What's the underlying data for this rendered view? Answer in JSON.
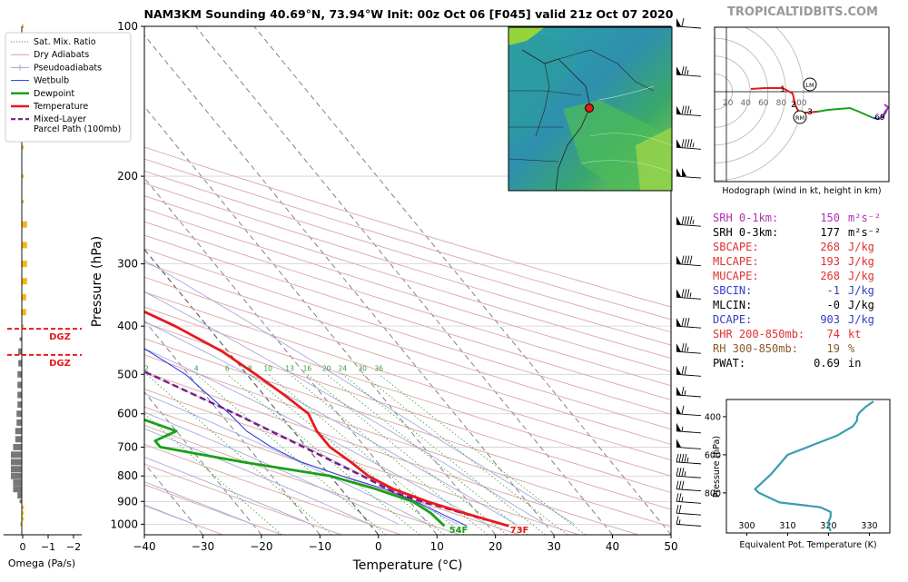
{
  "header": {
    "title": "NAM3KM Sounding 40.69°N, 73.94°W Init: 00z Oct 06 [F045] valid 21z Oct 07 2020",
    "watermark": "TROPICALTIDBITS.COM"
  },
  "legend": {
    "items": [
      {
        "label": "Sat. Mix. Ratio",
        "color": "#2e8b57",
        "style": "dotted"
      },
      {
        "label": "Dry Adiabats",
        "color": "#d9a0a0",
        "style": "solid"
      },
      {
        "label": "Pseudoadiabats",
        "color": "#a0a0d8",
        "style": "tick"
      },
      {
        "label": "Wetbulb",
        "color": "#2233dd",
        "style": "solid"
      },
      {
        "label": "Dewpoint",
        "color": "#19a119",
        "style": "thick"
      },
      {
        "label": "Temperature",
        "color": "#e8191b",
        "style": "thick"
      },
      {
        "label": "Mixed-Layer\nParcel Path (100mb)",
        "color": "#7b1a80",
        "style": "dashed"
      }
    ]
  },
  "omega": {
    "xlabel": "Omega (Pa/s)",
    "ticks": [
      "0",
      "−1",
      "−2"
    ],
    "dgz_label": "DGZ"
  },
  "hodograph": {
    "caption": "Hodograph (wind in kt, height in km)",
    "rings": [
      "20",
      "40",
      "60",
      "80",
      "100"
    ],
    "labels": {
      "lm": "LM",
      "rm": "RM",
      "h1": "1",
      "h2": "2",
      "h3": "3",
      "h69": "69"
    }
  },
  "indices": [
    {
      "label": "SRH 0-1km:",
      "value": "150",
      "unit": "m²s⁻²",
      "color": "#b030b0"
    },
    {
      "label": "SRH 0-3km:",
      "value": "177",
      "unit": "m²s⁻²",
      "color": "#000000"
    },
    {
      "label": "SBCAPE:",
      "value": "268",
      "unit": "J/kg",
      "color": "#e03030"
    },
    {
      "label": "MLCAPE:",
      "value": "193",
      "unit": "J/kg",
      "color": "#e03030"
    },
    {
      "label": "MUCAPE:",
      "value": "268",
      "unit": "J/kg",
      "color": "#e03030"
    },
    {
      "label": "SBCIN:",
      "value": "-1",
      "unit": "J/kg",
      "color": "#3040c0"
    },
    {
      "label": "MLCIN:",
      "value": "-0",
      "unit": "J/kg",
      "color": "#000000"
    },
    {
      "label": "DCAPE:",
      "value": "903",
      "unit": "J/kg",
      "color": "#3040c0"
    },
    {
      "label": "SHR 200-850mb:",
      "value": "74",
      "unit": "kt",
      "color": "#e03030"
    },
    {
      "label": "RH 300-850mb:",
      "value": "19",
      "unit": "%",
      "color": "#8b5a2b"
    },
    {
      "label": "PWAT:",
      "value": "0.69",
      "unit": "in",
      "color": "#000000"
    }
  ],
  "surface_labels": {
    "dewpoint": "54F",
    "temperature": "73F"
  },
  "colors": {
    "temperature": "#e8191b",
    "dewpoint": "#19a119",
    "wetbulb": "#2233dd",
    "parcel": "#7b1a80",
    "theta_e": "#3a9cb0"
  },
  "chart_data": [
    {
      "type": "line",
      "title": "NAM3KM Sounding 40.69°N, 73.94°W Init: 00z Oct 06 [F045] valid 21z Oct 07 2020",
      "xlabel": "Temperature (°C)",
      "ylabel": "Pressure (hPa)",
      "xlim": [
        -40,
        50
      ],
      "ylim": [
        1050,
        100
      ],
      "y_scale": "log",
      "skew": true,
      "x_ticks": [
        -40,
        -30,
        -20,
        -10,
        0,
        10,
        20,
        30,
        40,
        50
      ],
      "y_ticks": [
        100,
        200,
        300,
        400,
        500,
        600,
        700,
        800,
        900,
        1000
      ],
      "mixing_ratio_labels": [
        "1",
        "2",
        "4",
        "6",
        "8",
        "10",
        "13",
        "16",
        "20",
        "24",
        "30",
        "36"
      ],
      "series": [
        {
          "name": "Temperature",
          "points": [
            [
              1008,
              23.5
            ],
            [
              950,
              17.8
            ],
            [
              900,
              13.0
            ],
            [
              850,
              9.0
            ],
            [
              800,
              6.5
            ],
            [
              750,
              5.5
            ],
            [
              700,
              4.0
            ],
            [
              650,
              4.0
            ],
            [
              600,
              5.0
            ],
            [
              550,
              3.5
            ],
            [
              500,
              1.5
            ],
            [
              450,
              -1.0
            ],
            [
              400,
              -5.5
            ],
            [
              350,
              -12.0
            ],
            [
              300,
              -21.0
            ],
            [
              250,
              -33.0
            ],
            [
              200,
              -45.0
            ],
            [
              175,
              -52.5
            ],
            [
              150,
              -53.0
            ],
            [
              125,
              -52.0
            ],
            [
              100,
              -51.0
            ]
          ]
        },
        {
          "name": "Dewpoint",
          "points": [
            [
              1008,
              12.5
            ],
            [
              950,
              12.0
            ],
            [
              900,
              10.5
            ],
            [
              850,
              6.0
            ],
            [
              800,
              0.0
            ],
            [
              750,
              -13.0
            ],
            [
              700,
              -25.0
            ],
            [
              680,
              -25.0
            ],
            [
              650,
              -20.0
            ],
            [
              600,
              -26.0
            ],
            [
              550,
              -32.0
            ],
            [
              520,
              -39.0
            ],
            [
              500,
              -36.0
            ],
            [
              450,
              -27.0
            ],
            [
              420,
              -21.0
            ],
            [
              400,
              -22.0
            ],
            [
              375,
              -28.0
            ],
            [
              350,
              -31.0
            ],
            [
              300,
              -39.0
            ],
            [
              250,
              -50.0
            ],
            [
              200,
              -63.0
            ],
            [
              175,
              -68.0
            ],
            [
              150,
              -72.0
            ],
            [
              125,
              -73.0
            ],
            [
              100,
              -68.0
            ]
          ]
        },
        {
          "name": "Wetbulb",
          "points": [
            [
              1008,
              16.3
            ],
            [
              950,
              13.6
            ],
            [
              900,
              11.0
            ],
            [
              850,
              7.5
            ],
            [
              800,
              2.0
            ],
            [
              750,
              -3.0
            ],
            [
              700,
              -6.0
            ],
            [
              650,
              -8.0
            ],
            [
              600,
              -8.5
            ],
            [
              550,
              -9.5
            ],
            [
              500,
              -10.5
            ],
            [
              450,
              -13.5
            ],
            [
              400,
              -18.0
            ],
            [
              350,
              -24.0
            ],
            [
              300,
              -32.0
            ],
            [
              250,
              -41.0
            ],
            [
              200,
              -50.5
            ],
            [
              175,
              -55.5
            ],
            [
              150,
              -57.0
            ]
          ]
        },
        {
          "name": "Mixed-Layer Parcel Path (100mb)",
          "points": [
            [
              1008,
              23.5
            ],
            [
              950,
              17.5
            ],
            [
              900,
              12.0
            ],
            [
              860,
              8.5
            ],
            [
              800,
              5.5
            ],
            [
              700,
              -0.5
            ],
            [
              600,
              -7.5
            ],
            [
              500,
              -16.5
            ],
            [
              400,
              -28.0
            ],
            [
              300,
              -44.0
            ],
            [
              250,
              -54.0
            ],
            [
              200,
              -65.0
            ],
            [
              150,
              -79.0
            ]
          ]
        }
      ],
      "wind_barbs_kt": [
        [
          1000,
          15
        ],
        [
          950,
          20
        ],
        [
          900,
          25
        ],
        [
          850,
          30
        ],
        [
          800,
          35
        ],
        [
          750,
          45
        ],
        [
          700,
          50
        ],
        [
          650,
          55
        ],
        [
          600,
          60
        ],
        [
          550,
          65
        ],
        [
          500,
          70
        ],
        [
          450,
          75
        ],
        [
          400,
          80
        ],
        [
          350,
          85
        ],
        [
          300,
          90
        ],
        [
          250,
          95
        ],
        [
          200,
          100
        ],
        [
          175,
          95
        ],
        [
          150,
          85
        ],
        [
          125,
          75
        ],
        [
          100,
          60
        ]
      ]
    },
    {
      "type": "bar",
      "xlabel": "Omega (Pa/s)",
      "xlim": [
        0.5,
        -2.5
      ],
      "y_scale": "log",
      "levels_hPa": [
        1000,
        975,
        950,
        925,
        900,
        875,
        850,
        825,
        800,
        775,
        750,
        725,
        700,
        675,
        650,
        625,
        600,
        575,
        550,
        525,
        500,
        475,
        450,
        425,
        400,
        375,
        350,
        325,
        300,
        275,
        250,
        225,
        200,
        175,
        150,
        125,
        100
      ],
      "values": [
        0.02,
        -0.05,
        -0.05,
        -0.05,
        0.05,
        0.1,
        0.2,
        0.2,
        0.25,
        0.25,
        0.25,
        0.25,
        0.2,
        0.15,
        0.15,
        0.12,
        0.12,
        0.1,
        0.1,
        0.1,
        0.1,
        0.08,
        0.08,
        0.05,
        0.0,
        -0.1,
        -0.1,
        -0.12,
        -0.12,
        -0.12,
        -0.12,
        0.0,
        -0.03,
        0.0,
        -0.03,
        0.0,
        -0.03
      ],
      "dgz_hPa": [
        405,
        457
      ]
    },
    {
      "type": "line",
      "xlabel": "Equivalent Pot. Temperature (K)",
      "ylabel": "Pressure (hPa)",
      "xlim": [
        295,
        335
      ],
      "ylim": [
        1010,
        310
      ],
      "x_ticks": [
        300,
        310,
        320,
        330
      ],
      "y_ticks": [
        400,
        600,
        800
      ],
      "series": [
        {
          "name": "θe",
          "points": [
            [
              1000,
              320.5
            ],
            [
              975,
              320.0
            ],
            [
              950,
              320.0
            ],
            [
              925,
              320.5
            ],
            [
              900,
              320.5
            ],
            [
              875,
              318.0
            ],
            [
              850,
              308.0
            ],
            [
              800,
              303.0
            ],
            [
              780,
              302.0
            ],
            [
              750,
              303.5
            ],
            [
              700,
              306.0
            ],
            [
              650,
              308.0
            ],
            [
              600,
              310.0
            ],
            [
              550,
              316.0
            ],
            [
              500,
              322.0
            ],
            [
              450,
              326.0
            ],
            [
              420,
              327.0
            ],
            [
              400,
              327.0
            ],
            [
              380,
              327.5
            ],
            [
              350,
              329.0
            ],
            [
              320,
              331.0
            ]
          ]
        }
      ]
    },
    {
      "type": "line",
      "title": "Hodograph (wind in kt, height in km)",
      "series": [
        {
          "name": "hodograph",
          "points": [
            [
              -25,
              3
            ],
            [
              -18,
              2
            ],
            [
              -8,
              1
            ],
            [
              -3,
              -6
            ],
            [
              0,
              -15
            ],
            [
              3,
              -24
            ],
            [
              8,
              -32
            ],
            [
              15,
              -35
            ],
            [
              22,
              -33
            ],
            [
              28,
              -32
            ],
            [
              33,
              -35
            ],
            [
              36,
              -45
            ],
            [
              38,
              -60
            ],
            [
              40,
              -75
            ],
            [
              42,
              -88
            ],
            [
              44,
              -97
            ],
            [
              45,
              -104
            ]
          ]
        }
      ],
      "storm_motion": {
        "LM": [
          9,
          11
        ],
        "RM": [
          -6,
          10
        ]
      }
    }
  ]
}
